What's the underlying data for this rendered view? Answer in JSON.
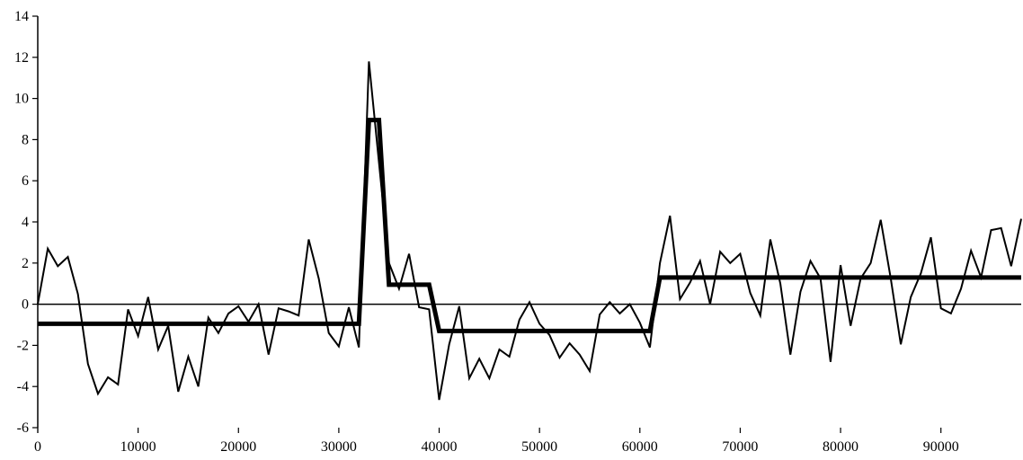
{
  "chart_data": {
    "type": "line",
    "title": "",
    "xlabel": "",
    "ylabel": "",
    "xlim": [
      0,
      98000
    ],
    "ylim": [
      -6,
      14
    ],
    "grid": false,
    "legend": "none",
    "x_ticks": [
      {
        "value": 0,
        "label": "0"
      },
      {
        "value": 10000,
        "label": "10000"
      },
      {
        "value": 20000,
        "label": "20000"
      },
      {
        "value": 30000,
        "label": "30000"
      },
      {
        "value": 40000,
        "label": "40000"
      },
      {
        "value": 50000,
        "label": "50000"
      },
      {
        "value": 60000,
        "label": "60000"
      },
      {
        "value": 70000,
        "label": "70000"
      },
      {
        "value": 80000,
        "label": "80000"
      },
      {
        "value": 90000,
        "label": "90000"
      }
    ],
    "y_ticks": [
      {
        "value": -6,
        "label": "-6"
      },
      {
        "value": -4,
        "label": "-4"
      },
      {
        "value": -2,
        "label": "-2"
      },
      {
        "value": 0,
        "label": "0"
      },
      {
        "value": 2,
        "label": "2"
      },
      {
        "value": 4,
        "label": "4"
      },
      {
        "value": 6,
        "label": "6"
      },
      {
        "value": 8,
        "label": "8"
      },
      {
        "value": 10,
        "label": "10"
      },
      {
        "value": 12,
        "label": "12"
      },
      {
        "value": 14,
        "label": "14"
      }
    ],
    "series": [
      {
        "color": "#000000",
        "stroke_width": 2,
        "x": [
          0,
          1000,
          2000,
          3000,
          4000,
          5000,
          6000,
          7000,
          8000,
          9000,
          10000,
          11000,
          12000,
          13000,
          14000,
          15000,
          16000,
          17000,
          18000,
          19000,
          20000,
          21000,
          22000,
          23000,
          24000,
          25000,
          26000,
          27000,
          28000,
          29000,
          30000,
          31000,
          32000,
          33000,
          34000,
          35000,
          36000,
          37000,
          38000,
          39000,
          40000,
          41000,
          42000,
          43000,
          44000,
          45000,
          46000,
          47000,
          48000,
          49000,
          50000,
          51000,
          52000,
          53000,
          54000,
          55000,
          56000,
          57000,
          58000,
          59000,
          60000,
          61000,
          62000,
          63000,
          64000,
          65000,
          66000,
          67000,
          68000,
          69000,
          70000,
          71000,
          72000,
          73000,
          74000,
          75000,
          76000,
          77000,
          78000,
          79000,
          80000,
          81000,
          82000,
          83000,
          84000,
          85000,
          86000,
          87000,
          88000,
          89000,
          90000,
          91000,
          92000,
          93000,
          94000,
          95000,
          96000,
          97000,
          98000
        ],
        "values": [
          0,
          2.7,
          1.85,
          2.3,
          0.5,
          -2.9,
          -4.35,
          -3.55,
          -3.9,
          -0.25,
          -1.55,
          0.35,
          -2.2,
          -1.05,
          -4.25,
          -2.55,
          -4.0,
          -0.65,
          -1.4,
          -0.45,
          -0.1,
          -0.85,
          0,
          -2.45,
          -0.2,
          -0.35,
          -0.55,
          3.15,
          1.25,
          -1.4,
          -2.05,
          -0.15,
          -2.1,
          11.8,
          6.9,
          2.0,
          0.75,
          2.45,
          -0.15,
          -0.25,
          -4.65,
          -1.95,
          -0.1,
          -3.6,
          -2.65,
          -3.6,
          -2.2,
          -2.55,
          -0.75,
          0.1,
          -0.95,
          -1.5,
          -2.6,
          -1.9,
          -2.45,
          -3.25,
          -0.5,
          0.1,
          -0.45,
          0,
          -0.9,
          -2.1,
          2.0,
          4.3,
          0.25,
          1.05,
          2.1,
          0,
          2.55,
          2.0,
          2.45,
          0.55,
          -0.55,
          3.15,
          1.0,
          -2.45,
          0.6,
          2.1,
          1.25,
          -2.8,
          1.9,
          -1.05,
          1.25,
          2.0,
          4.1,
          1.25,
          -1.95,
          0.35,
          1.5,
          3.25,
          -0.2,
          -0.45,
          0.75,
          2.6,
          1.3,
          3.6,
          3.7,
          1.85,
          4.15
        ]
      },
      {
        "color": "#000000",
        "stroke_width": 5,
        "x": [
          0,
          32000,
          33000,
          34000,
          35000,
          39000,
          40000,
          61000,
          62000,
          98000
        ],
        "values": [
          -0.95,
          -0.95,
          8.95,
          8.95,
          0.95,
          0.95,
          -1.3,
          -1.3,
          1.3,
          1.3
        ]
      }
    ]
  }
}
